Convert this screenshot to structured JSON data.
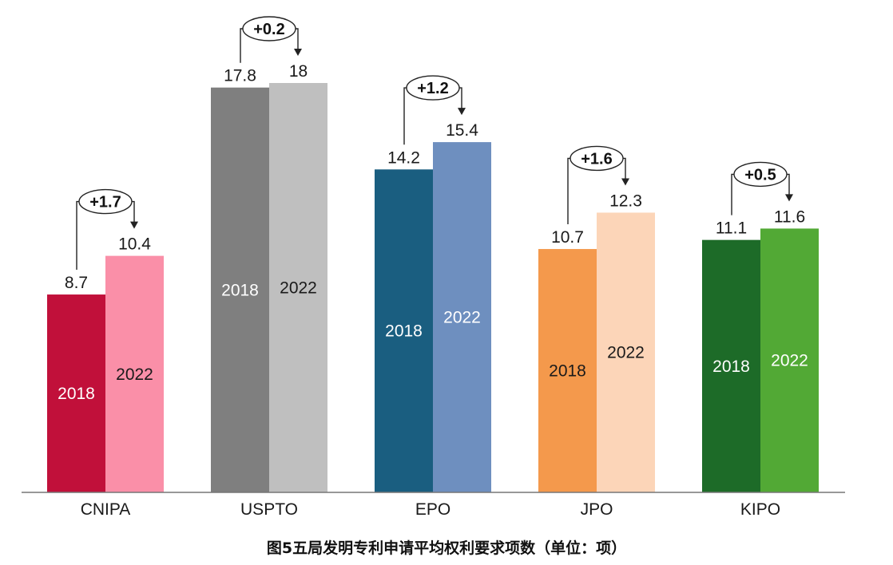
{
  "caption": "图5五局发明专利申请平均权利要求项数（单位：项）",
  "chart_data": {
    "type": "bar",
    "title": "图5五局发明专利申请平均权利要求项数（单位：项）",
    "categories": [
      "CNIPA",
      "USPTO",
      "EPO",
      "JPO",
      "KIPO"
    ],
    "series": [
      {
        "name": "2018",
        "values": [
          8.7,
          17.8,
          14.2,
          10.7,
          11.1
        ]
      },
      {
        "name": "2022",
        "values": [
          10.4,
          18,
          15.4,
          12.3,
          11.6
        ]
      }
    ],
    "value_labels": {
      "2018": [
        "8.7",
        "17.8",
        "14.2",
        "10.7",
        "11.1"
      ],
      "2022": [
        "10.4",
        "18",
        "15.4",
        "12.3",
        "11.6"
      ]
    },
    "bar_labels": [
      "2018",
      "2022"
    ],
    "deltas": [
      "+1.7",
      "+0.2",
      "+1.2",
      "+1.6",
      "+0.5"
    ],
    "colors": {
      "2018": [
        "#c1103a",
        "#7f7f7f",
        "#1a5e80",
        "#f4994c",
        "#1d6b28"
      ],
      "2022": [
        "#fa8fa8",
        "#bfbfbf",
        "#6e8fbf",
        "#fcd5b8",
        "#52a935"
      ],
      "label_2018": [
        "#ffffff",
        "#ffffff",
        "#ffffff",
        "#1a1a1a",
        "#ffffff"
      ],
      "label_2022": [
        "#1a1a1a",
        "#1a1a1a",
        "#ffffff",
        "#1a1a1a",
        "#ffffff"
      ]
    },
    "ylim": [
      0,
      20
    ],
    "grid": false,
    "xlabel": "",
    "ylabel": ""
  }
}
